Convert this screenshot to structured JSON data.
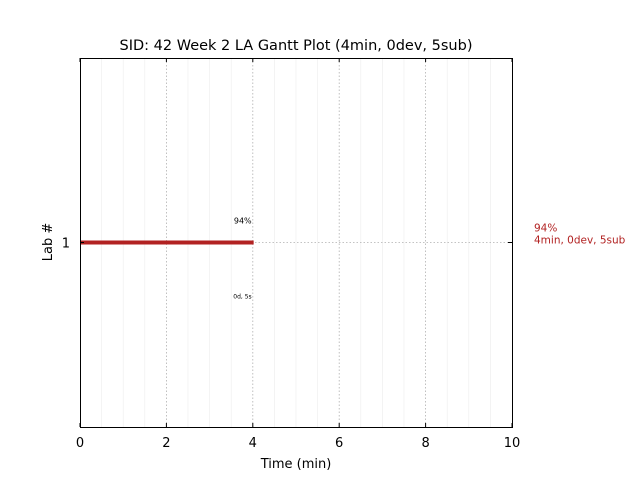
{
  "chart_data": {
    "type": "gantt",
    "title": "SID: 42 Week 2 LA Gantt Plot (4min, 0dev, 5sub)",
    "xlabel": "Time (min)",
    "ylabel": "Lab #",
    "xlim": [
      0,
      10
    ],
    "x_ticks": [
      "0",
      "2",
      "4",
      "6",
      "8",
      "10"
    ],
    "y_ticks": [
      "1"
    ],
    "grid": true,
    "series": [
      {
        "lab": "1",
        "start": 0,
        "end": 4.02,
        "color": "#b22222",
        "bar_label_above": "94%",
        "bar_label_below": "0d, 5s",
        "side_label_lines": [
          "94%",
          "4min, 0dev, 5sub"
        ]
      }
    ]
  }
}
